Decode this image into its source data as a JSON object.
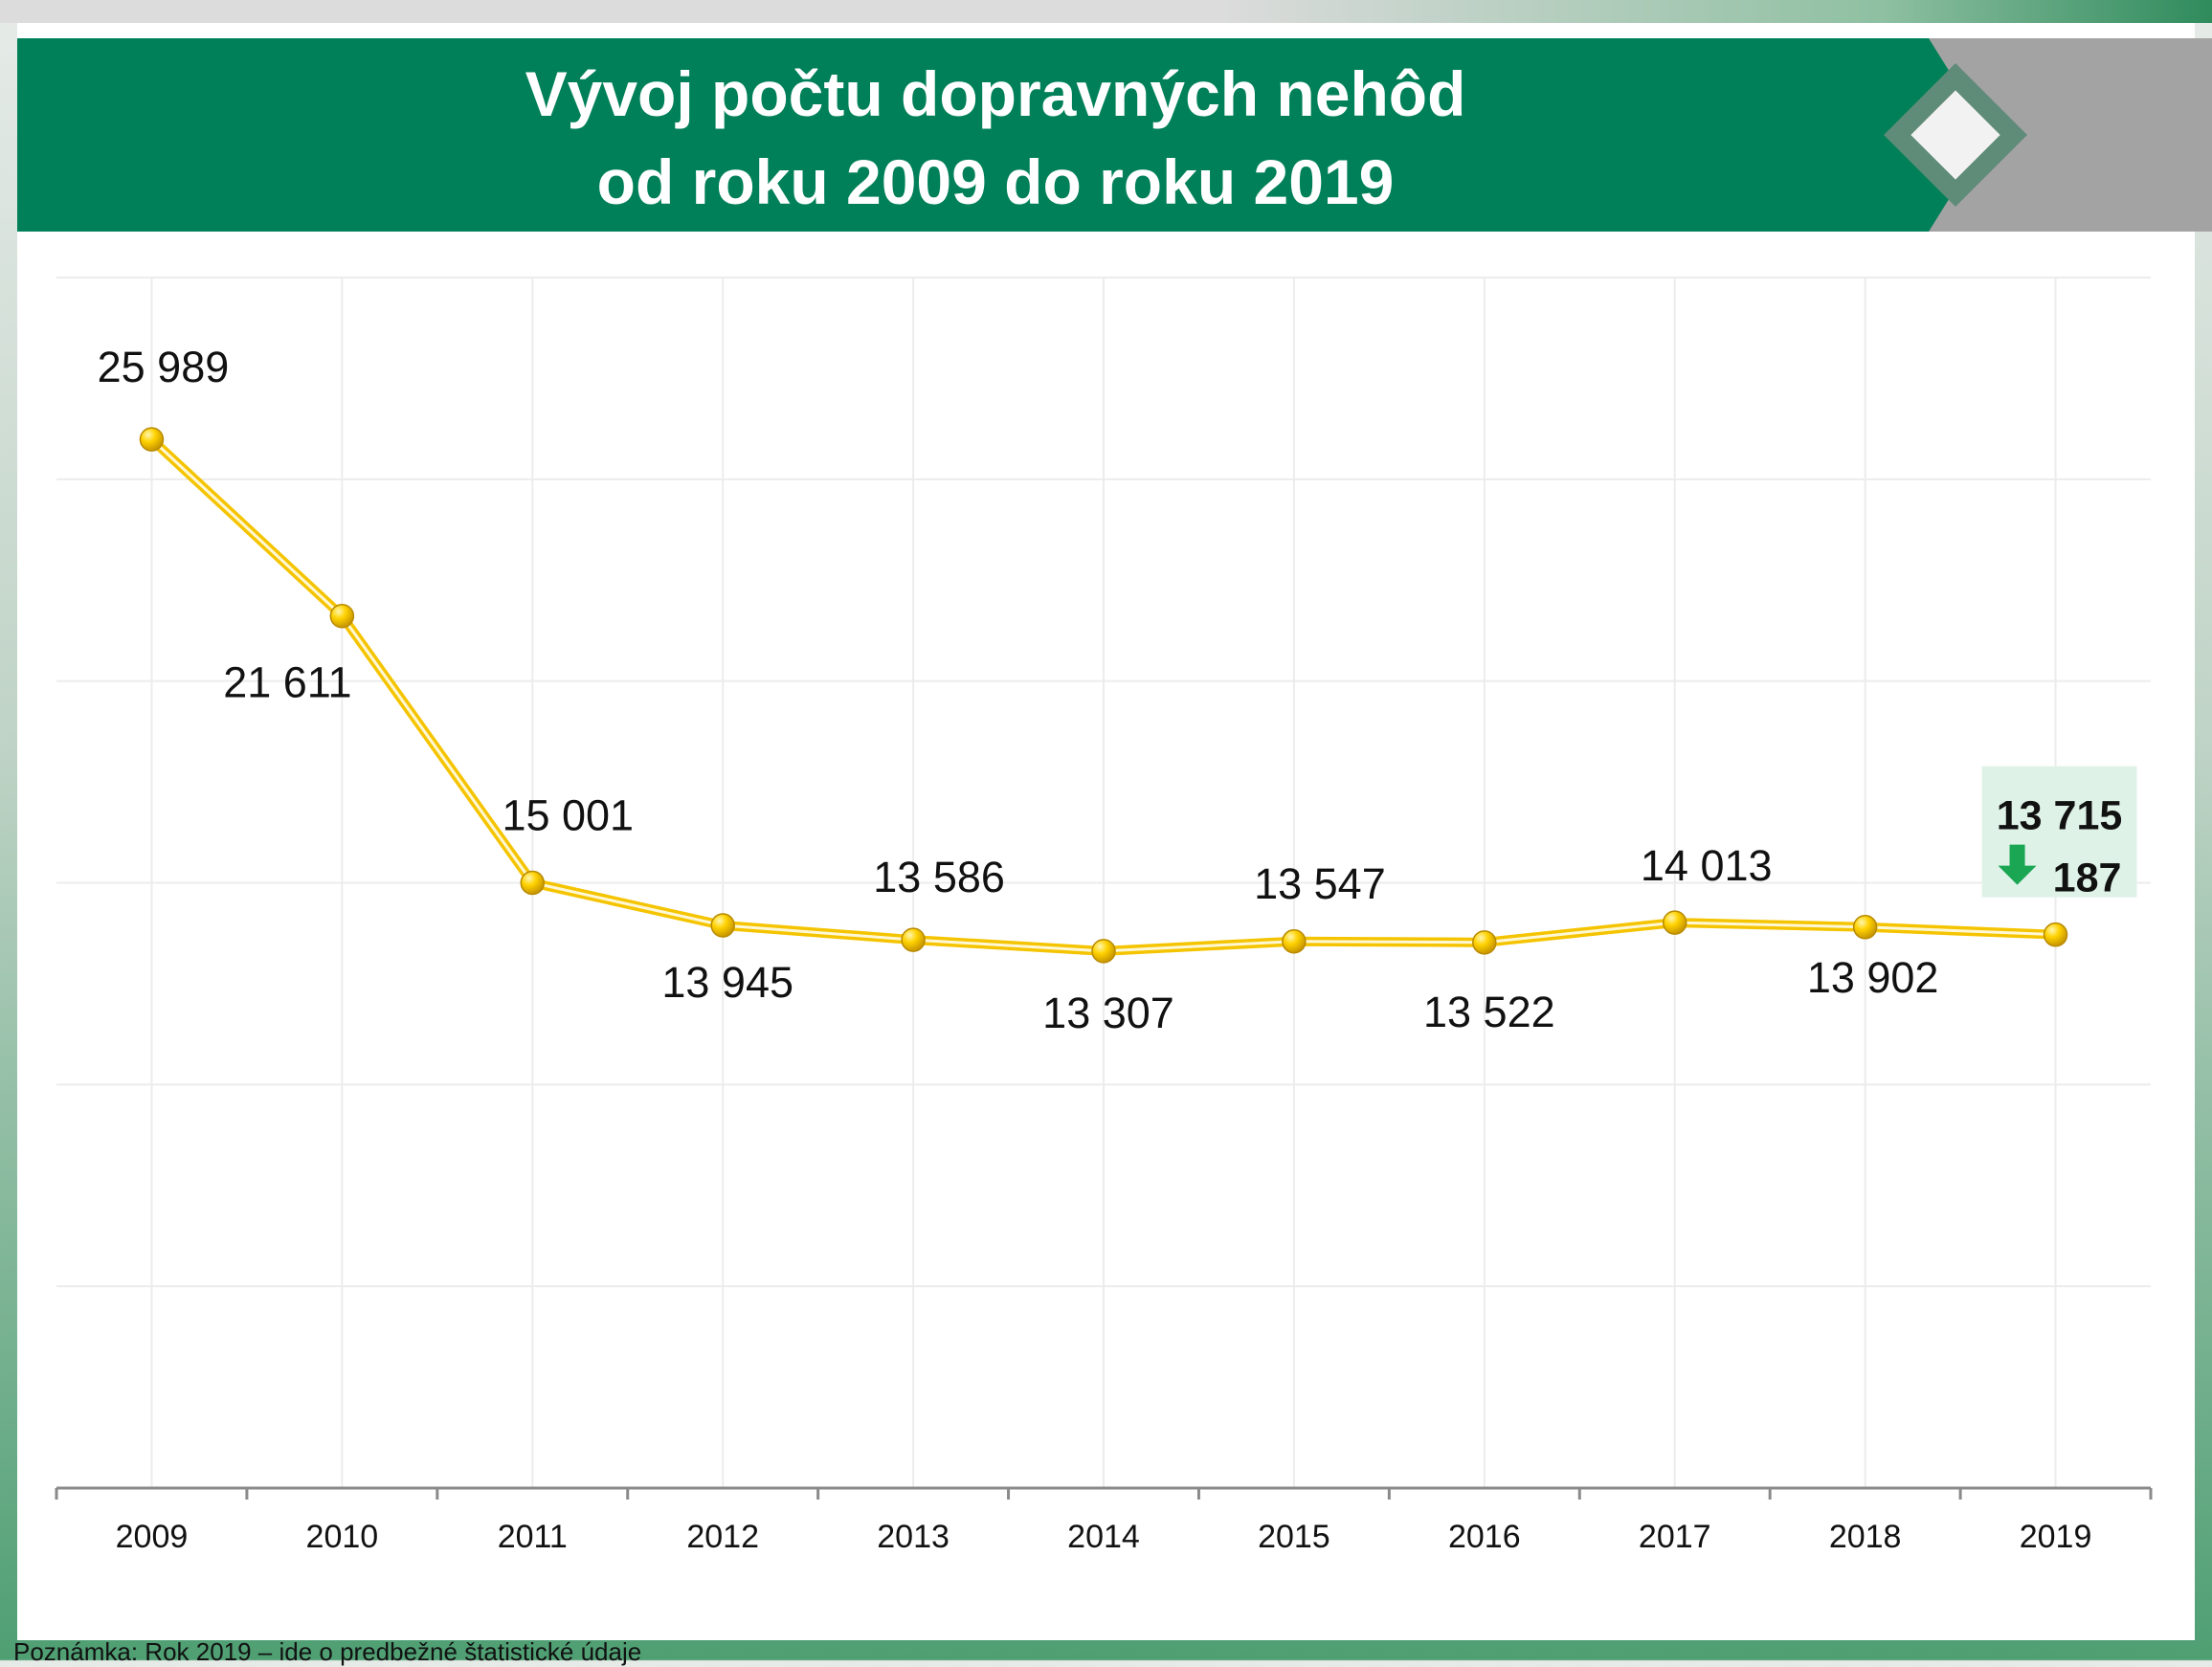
{
  "header": {
    "title_line1": "Vývoj počtu dopravných nehôd",
    "title_line2": "od roku 2009 do roku 2019"
  },
  "colors": {
    "banner_green": "#008058",
    "banner_gray": "#a3a3a3",
    "line": "#f5c400",
    "marker": "#ffd200",
    "highlight_box": "#dff2e8",
    "down_arrow": "#1aa653"
  },
  "chart_data": {
    "type": "line",
    "categories": [
      "2009",
      "2010",
      "2011",
      "2012",
      "2013",
      "2014",
      "2015",
      "2016",
      "2017",
      "2018",
      "2019"
    ],
    "values": [
      25989,
      21611,
      15001,
      13945,
      13586,
      13307,
      13547,
      13522,
      14013,
      13902,
      13715
    ],
    "data_labels": [
      "25 989",
      "21 611",
      "15 001",
      "13 945",
      "13 586",
      "13 307",
      "13 547",
      "13 522",
      "14 013",
      "13 902",
      "13 715"
    ],
    "ylim": [
      0,
      30000
    ],
    "grid": true,
    "highlight": {
      "category": "2019",
      "value_label": "13 715",
      "change_label": "187",
      "change_direction": "down",
      "change_icon": "down-arrow-icon"
    }
  },
  "footnote": "Poznámka: Rok 2019 – ide o predbežné štatistické údaje"
}
